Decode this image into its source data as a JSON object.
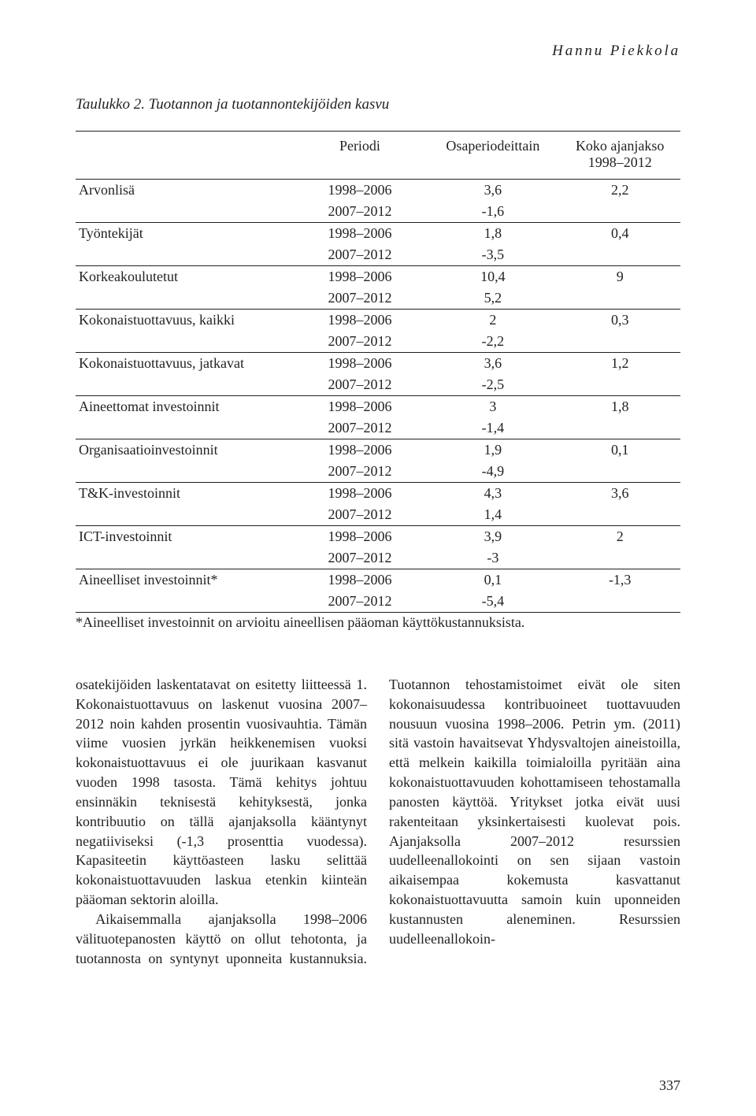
{
  "running_head": "Hannu Piekkola",
  "table": {
    "caption": "Taulukko 2. Tuotannon ja tuotannontekijöiden kasvu",
    "header": {
      "col_label": "",
      "col_period": "Periodi",
      "col_osa": "Osaperiodeittain",
      "col_koko_line1": "Koko ajanjakso",
      "col_koko_line2": "1998–2012"
    },
    "rows": [
      {
        "label": "Arvonlisä",
        "p1": "1998–2006",
        "v1": "3,6",
        "k": "2,2",
        "p2": "2007–2012",
        "v2": "-1,6"
      },
      {
        "label": "Työntekijät",
        "p1": "1998–2006",
        "v1": "1,8",
        "k": "0,4",
        "p2": "2007–2012",
        "v2": "-3,5"
      },
      {
        "label": "Korkeakoulutetut",
        "p1": "1998–2006",
        "v1": "10,4",
        "k": "9",
        "p2": "2007–2012",
        "v2": "5,2"
      },
      {
        "label": "Kokonaistuottavuus, kaikki",
        "p1": "1998–2006",
        "v1": "2",
        "k": "0,3",
        "p2": "2007–2012",
        "v2": "-2,2"
      },
      {
        "label": "Kokonaistuottavuus, jatkavat",
        "p1": "1998–2006",
        "v1": "3,6",
        "k": "1,2",
        "p2": "2007–2012",
        "v2": "-2,5"
      },
      {
        "label": "Aineettomat investoinnit",
        "p1": "1998–2006",
        "v1": "3",
        "k": "1,8",
        "p2": "2007–2012",
        "v2": "-1,4"
      },
      {
        "label": "Organisaatioinvestoinnit",
        "p1": "1998–2006",
        "v1": "1,9",
        "k": "0,1",
        "p2": "2007–2012",
        "v2": "-4,9"
      },
      {
        "label": "T&K-investoinnit",
        "p1": "1998–2006",
        "v1": "4,3",
        "k": "3,6",
        "p2": "2007–2012",
        "v2": "1,4"
      },
      {
        "label": "ICT-investoinnit",
        "p1": "1998–2006",
        "v1": "3,9",
        "k": "2",
        "p2": "2007–2012",
        "v2": "-3"
      },
      {
        "label": "Aineelliset investoinnit*",
        "p1": "1998–2006",
        "v1": "0,1",
        "k": "-1,3",
        "p2": "2007–2012",
        "v2": "-5,4"
      }
    ],
    "footnote": "*Aineelliset investoinnit on arvioitu aineellisen pääoman käyttökustannuksista."
  },
  "body": {
    "p1": "osatekijöiden laskentatavat on esitetty liitteessä 1. Kokonaistuottavuus on laskenut vuosina 2007–2012 noin kahden prosentin vuosivauhtia. Tämän viime vuosien jyrkän heikkenemisen vuoksi kokonaistuottavuus ei ole juurikaan kasvanut vuoden 1998 tasosta. Tämä kehitys johtuu ensinnäkin teknisestä kehityksestä, jonka kontribuutio on tällä ajanjaksolla kääntynyt negatiiviseksi (-1,3 prosenttia vuodessa). Kapasiteetin käyttöasteen lasku selittää kokonaistuottavuuden laskua etenkin kiinteän pääoman sektorin aloilla.",
    "p2": "Aikaisemmalla ajanjaksolla 1998–2006 välituotepanosten käyttö on ollut tehotonta, ja tuotannosta on syntynyt uponneita kustannuksia. Tuotannon tehostamistoimet eivät ole siten kokonaisuudessa kontribuoineet tuottavuuden nousuun vuosina 1998–2006. Petrin ym. (2011) sitä vastoin havaitsevat Yhdysvaltojen aineistoilla, että melkein kaikilla toimialoilla pyritään aina kokonaistuottavuuden kohottamiseen tehostamalla panosten käyttöä. Yritykset jotka eivät uusi rakenteitaan yksinkertaisesti kuolevat pois. Ajanjaksolla 2007–2012 resurssien uudelleenallokointi on sen sijaan vastoin aikaisempaa kokemusta kasvattanut kokonaistuottavuutta samoin kuin uponneiden kustannusten aleneminen. Resurssien uudelleenallokoin-"
  },
  "page_number": "337"
}
